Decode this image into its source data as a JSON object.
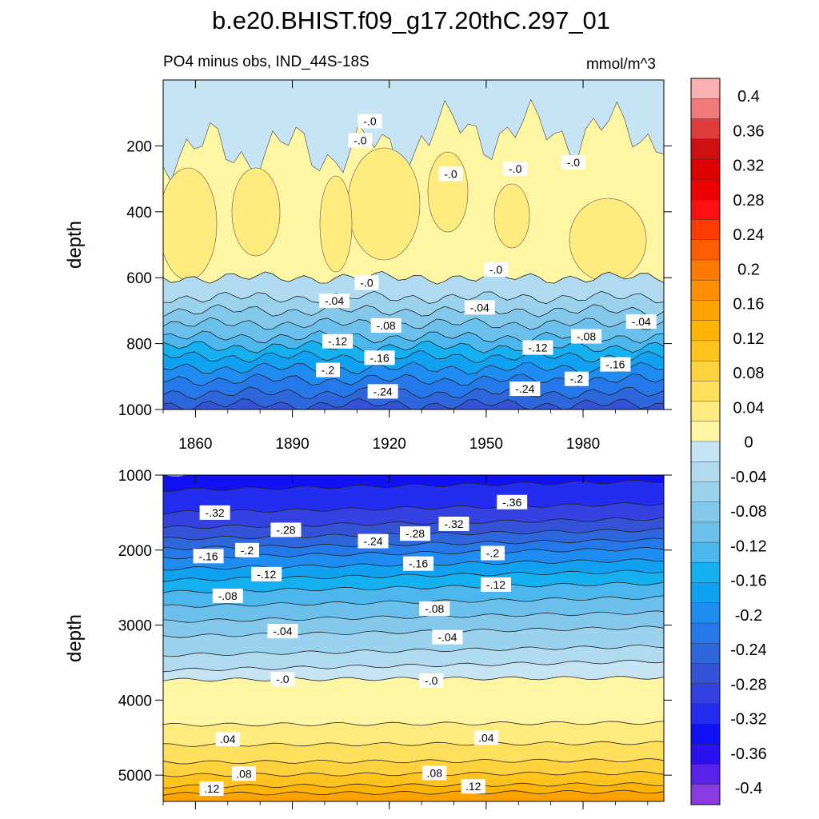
{
  "chart_data": {
    "type": "heatmap",
    "title": "b.e20.BHIST.f09_g17.20thC.297_01",
    "subtitle_left": "PO4 minus obs, IND_44S-18S",
    "subtitle_right": "mmol/m^3",
    "colorbar": {
      "levels": [
        "0.4",
        "0.36",
        "0.32",
        "0.28",
        "0.24",
        "0.2",
        "0.16",
        "0.12",
        "0.08",
        "0.04",
        "0",
        "-0.04",
        "-0.08",
        "-0.12",
        "-0.16",
        "-0.2",
        "-0.24",
        "-0.28",
        "-0.32",
        "-0.36",
        "-0.4"
      ],
      "colors": [
        "#f9b1b1",
        "#f07979",
        "#e03b3b",
        "#d01010",
        "#de0000",
        "#ee0000",
        "#ff1010",
        "#ff3c00",
        "#ff5d00",
        "#ff7a00",
        "#ff8f00",
        "#ffa300",
        "#ffb400",
        "#ffc31e",
        "#ffd23e",
        "#ffe05c",
        "#ffeb7e",
        "#fff6a3",
        "#c6e4f4",
        "#b1dbf1",
        "#9bd3ee",
        "#84c9ec",
        "#6bc1ec",
        "#4cb7ec",
        "#14b0f0",
        "#10a2f0",
        "#1e8cf0",
        "#2478ea",
        "#2e66dc",
        "#3452d6",
        "#3440e0",
        "#222df0",
        "#1010f5",
        "#2a10ef",
        "#5a22e8",
        "#8a3ae0"
      ]
    },
    "panels": [
      {
        "name": "upper",
        "xlabel": "",
        "ylabel": "depth",
        "xlim": [
          1850,
          2005
        ],
        "ylim": [
          1000,
          0
        ],
        "xticks": [
          1860,
          1890,
          1920,
          1950,
          1980
        ],
        "yticks": [
          200,
          400,
          600,
          800,
          1000
        ],
        "contour_labels": [
          {
            "text": "-.0",
            "x": 1939,
            "y": 285
          },
          {
            "text": "-.0",
            "x": 1959,
            "y": 270
          },
          {
            "text": "-.0",
            "x": 1977,
            "y": 250
          },
          {
            "text": "-.0",
            "x": 1914,
            "y": 125
          },
          {
            "text": "-.0",
            "x": 1911,
            "y": 183
          },
          {
            "text": "-.0",
            "x": 1913,
            "y": 615
          },
          {
            "text": "-.0",
            "x": 1953,
            "y": 575
          },
          {
            "text": "-.04",
            "x": 1903,
            "y": 670
          },
          {
            "text": "-.04",
            "x": 1948,
            "y": 690
          },
          {
            "text": "-.04",
            "x": 1998,
            "y": 733
          },
          {
            "text": "-.08",
            "x": 1919,
            "y": 745
          },
          {
            "text": "-.08",
            "x": 1981,
            "y": 778
          },
          {
            "text": "-.12",
            "x": 1904,
            "y": 793
          },
          {
            "text": "-.12",
            "x": 1966,
            "y": 812
          },
          {
            "text": "-.16",
            "x": 1917,
            "y": 843
          },
          {
            "text": "-.16",
            "x": 1990,
            "y": 863
          },
          {
            "text": "-.2",
            "x": 1901,
            "y": 880
          },
          {
            "text": "-.2",
            "x": 1978,
            "y": 907
          },
          {
            "text": "-.24",
            "x": 1918,
            "y": 945
          },
          {
            "text": "-.24",
            "x": 1962,
            "y": 937
          }
        ]
      },
      {
        "name": "lower",
        "xlabel": "",
        "ylabel": "depth",
        "xlim": [
          1850,
          2005
        ],
        "ylim": [
          5350,
          1000
        ],
        "xticks": [
          1860,
          1890,
          1920,
          1950,
          1980
        ],
        "yticks": [
          1000,
          2000,
          3000,
          4000,
          5000
        ],
        "contour_labels": [
          {
            "text": "-.36",
            "x": 1958,
            "y": 1360
          },
          {
            "text": "-.32",
            "x": 1866,
            "y": 1500
          },
          {
            "text": "-.32",
            "x": 1940,
            "y": 1650
          },
          {
            "text": "-.28",
            "x": 1888,
            "y": 1730
          },
          {
            "text": "-.28",
            "x": 1928,
            "y": 1780
          },
          {
            "text": "-.24",
            "x": 1915,
            "y": 1880
          },
          {
            "text": "-.2",
            "x": 1876,
            "y": 2000
          },
          {
            "text": "-.2",
            "x": 1952,
            "y": 2040
          },
          {
            "text": "-.16",
            "x": 1864,
            "y": 2080
          },
          {
            "text": "-.16",
            "x": 1929,
            "y": 2180
          },
          {
            "text": "-.12",
            "x": 1882,
            "y": 2320
          },
          {
            "text": "-.12",
            "x": 1953,
            "y": 2460
          },
          {
            "text": "-.08",
            "x": 1870,
            "y": 2610
          },
          {
            "text": "-.08",
            "x": 1934,
            "y": 2780
          },
          {
            "text": "-.04",
            "x": 1887,
            "y": 3080
          },
          {
            "text": "-.04",
            "x": 1938,
            "y": 3160
          },
          {
            "text": "-.0",
            "x": 1887,
            "y": 3720
          },
          {
            "text": "-.0",
            "x": 1933,
            "y": 3740
          },
          {
            "text": ".04",
            "x": 1870,
            "y": 4520
          },
          {
            "text": ".04",
            "x": 1950,
            "y": 4500
          },
          {
            "text": ".08",
            "x": 1875,
            "y": 4980
          },
          {
            "text": ".08",
            "x": 1934,
            "y": 4970
          },
          {
            "text": ".12",
            "x": 1865,
            "y": 5180
          },
          {
            "text": ".12",
            "x": 1946,
            "y": 5150
          }
        ]
      }
    ]
  }
}
